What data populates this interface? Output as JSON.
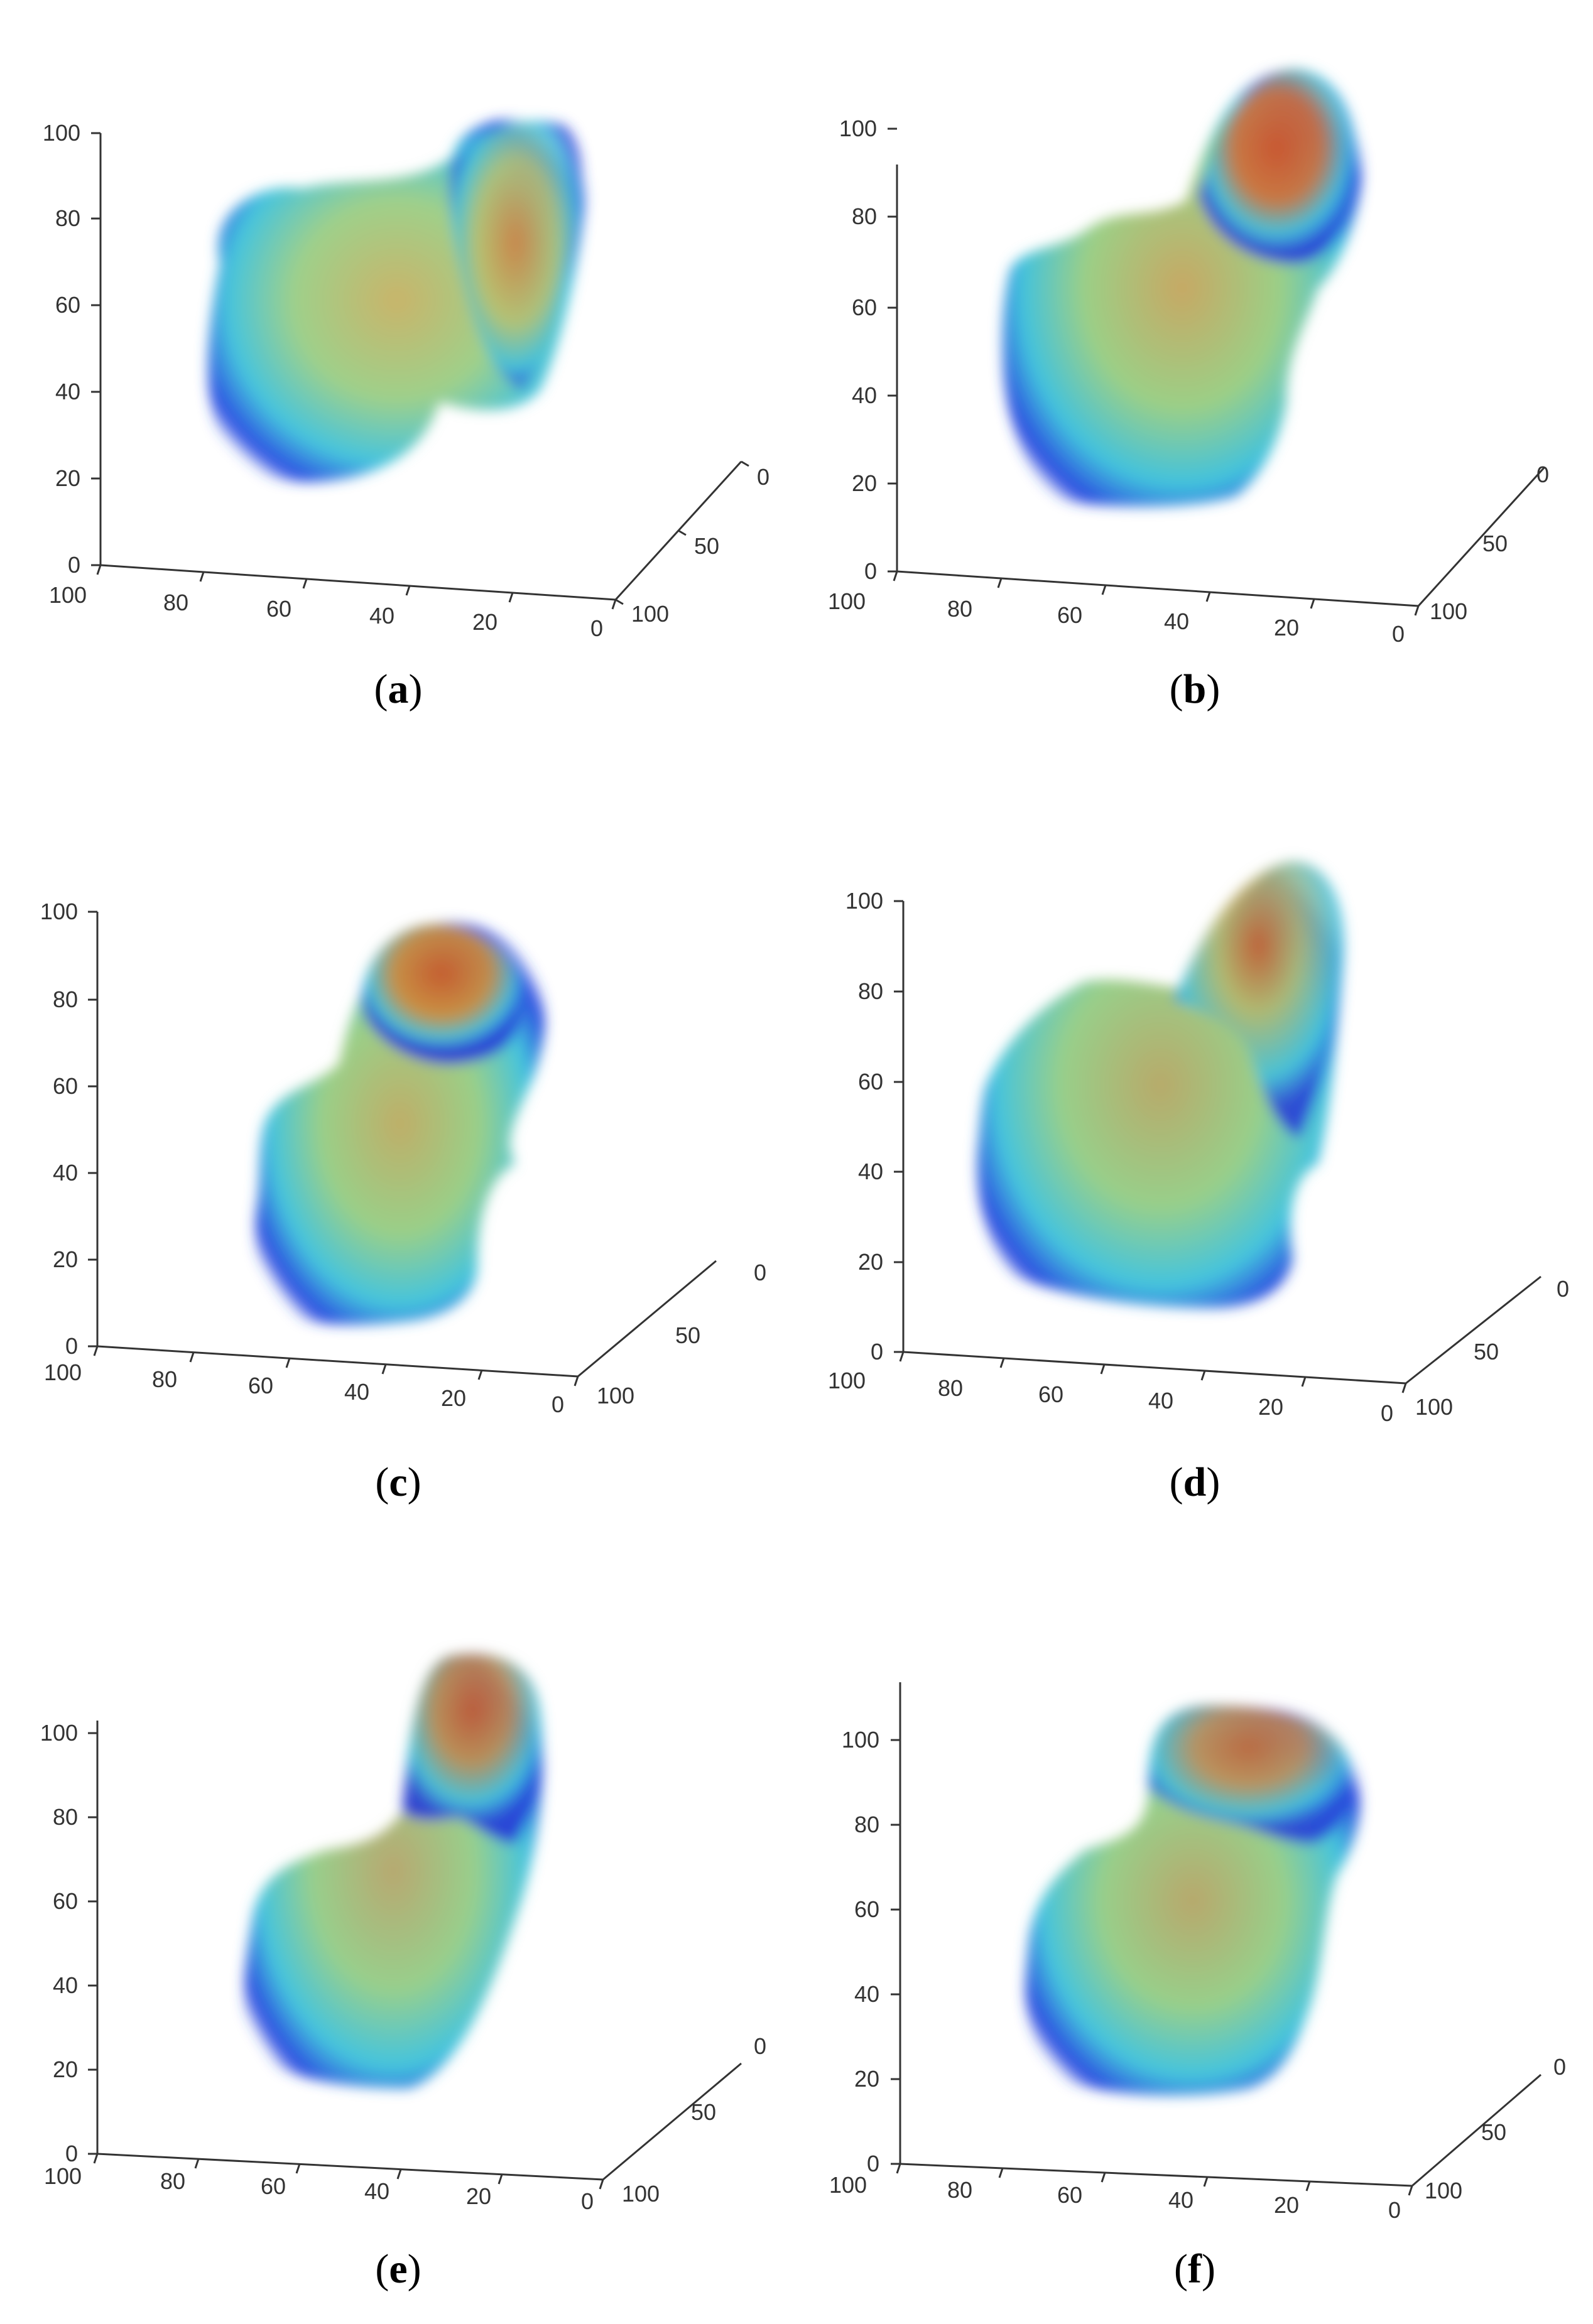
{
  "figure": {
    "panels": [
      {
        "id": "a",
        "caption": "a",
        "z_ticks": [
          "0",
          "20",
          "40",
          "60",
          "80",
          "100"
        ],
        "x_ticks": [
          "100",
          "80",
          "60",
          "40",
          "20",
          "0"
        ],
        "y_ticks": [
          "0",
          "50",
          "100"
        ]
      },
      {
        "id": "b",
        "caption": "b",
        "z_ticks": [
          "0",
          "20",
          "40",
          "60",
          "80",
          "100"
        ],
        "x_ticks": [
          "100",
          "80",
          "60",
          "40",
          "20",
          "0"
        ],
        "y_ticks": [
          "0",
          "50",
          "100"
        ]
      },
      {
        "id": "c",
        "caption": "c",
        "z_ticks": [
          "0",
          "20",
          "40",
          "60",
          "80",
          "100"
        ],
        "x_ticks": [
          "100",
          "80",
          "60",
          "40",
          "20",
          "0"
        ],
        "y_ticks": [
          "0",
          "50",
          "100"
        ]
      },
      {
        "id": "d",
        "caption": "d",
        "z_ticks": [
          "0",
          "20",
          "40",
          "60",
          "80",
          "100"
        ],
        "x_ticks": [
          "100",
          "80",
          "60",
          "40",
          "20",
          "0"
        ],
        "y_ticks": [
          "0",
          "50",
          "100"
        ]
      },
      {
        "id": "e",
        "caption": "e",
        "z_ticks": [
          "0",
          "20",
          "40",
          "60",
          "80",
          "100"
        ],
        "x_ticks": [
          "100",
          "80",
          "60",
          "40",
          "20",
          "0"
        ],
        "y_ticks": [
          "0",
          "50",
          "100"
        ]
      },
      {
        "id": "f",
        "caption": "f",
        "z_ticks": [
          "0",
          "20",
          "40",
          "60",
          "80",
          "100"
        ],
        "x_ticks": [
          "100",
          "80",
          "60",
          "40",
          "20",
          "0"
        ],
        "y_ticks": [
          "0",
          "50",
          "100"
        ]
      }
    ],
    "colormap": {
      "edge": "#1f2fd6",
      "mid": "#33c0e6",
      "body": "#8fd090",
      "hot": "#d6562a"
    }
  }
}
